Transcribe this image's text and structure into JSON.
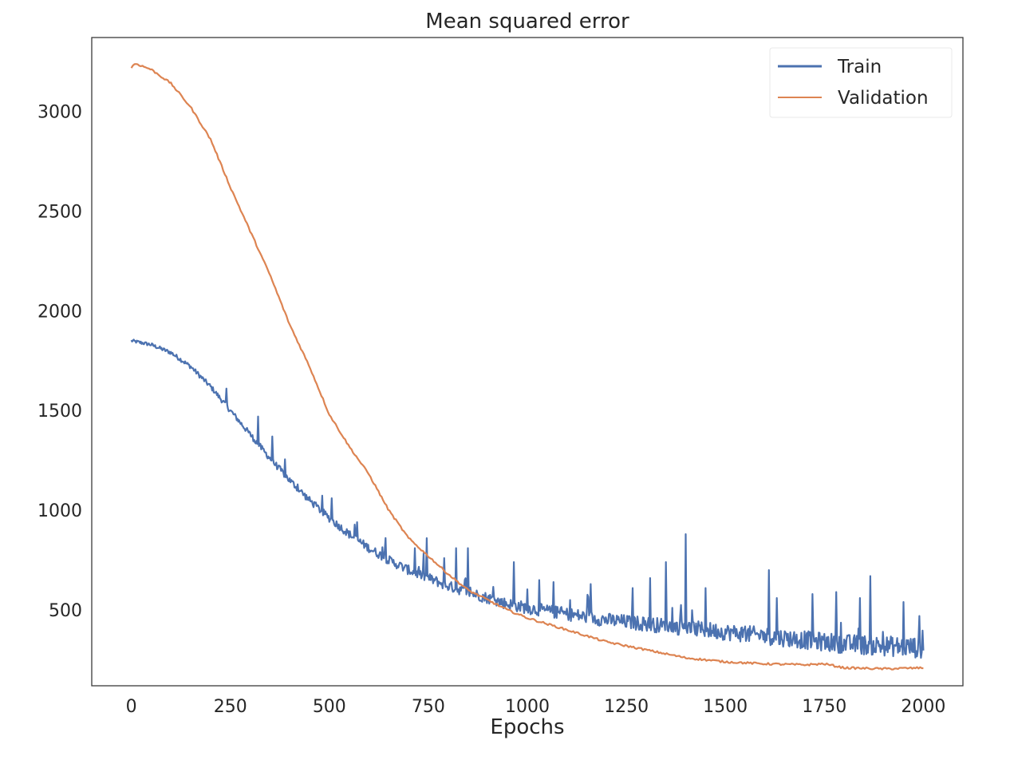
{
  "chart_data": {
    "type": "line",
    "title": "Mean squared error",
    "xlabel": "Epochs",
    "ylabel": "",
    "xlim": [
      -100,
      2100
    ],
    "ylim": [
      120,
      3370
    ],
    "grid": false,
    "legend_position": "top-right",
    "x_ticks": [
      {
        "value": 0,
        "label": "0"
      },
      {
        "value": 250,
        "label": "250"
      },
      {
        "value": 500,
        "label": "500"
      },
      {
        "value": 750,
        "label": "750"
      },
      {
        "value": 1000,
        "label": "1000"
      },
      {
        "value": 1250,
        "label": "1250"
      },
      {
        "value": 1500,
        "label": "1500"
      },
      {
        "value": 1750,
        "label": "1750"
      },
      {
        "value": 2000,
        "label": "2000"
      }
    ],
    "y_ticks": [
      {
        "value": 500,
        "label": "500"
      },
      {
        "value": 1000,
        "label": "1000"
      },
      {
        "value": 1500,
        "label": "1500"
      },
      {
        "value": 2000,
        "label": "2000"
      },
      {
        "value": 2500,
        "label": "2500"
      },
      {
        "value": 3000,
        "label": "3000"
      }
    ],
    "series": [
      {
        "name": "Train",
        "color": "#4c72b0",
        "x": [
          0,
          50,
          100,
          150,
          200,
          250,
          300,
          350,
          400,
          450,
          500,
          550,
          600,
          650,
          700,
          750,
          800,
          850,
          900,
          950,
          1000,
          1100,
          1200,
          1300,
          1400,
          1500,
          1600,
          1700,
          1800,
          1900,
          2000
        ],
        "y": [
          1850,
          1830,
          1790,
          1720,
          1620,
          1500,
          1380,
          1260,
          1150,
          1050,
          960,
          880,
          810,
          750,
          700,
          660,
          620,
          590,
          560,
          530,
          510,
          480,
          450,
          430,
          410,
          390,
          370,
          350,
          330,
          320,
          310
        ],
        "spikes": [
          {
            "x": 240,
            "y": 1610
          },
          {
            "x": 320,
            "y": 1470
          },
          {
            "x": 355,
            "y": 1370
          },
          {
            "x": 420,
            "y": 1130
          },
          {
            "x": 505,
            "y": 1060
          },
          {
            "x": 570,
            "y": 940
          },
          {
            "x": 640,
            "y": 800
          },
          {
            "x": 715,
            "y": 810
          },
          {
            "x": 745,
            "y": 860
          },
          {
            "x": 790,
            "y": 760
          },
          {
            "x": 820,
            "y": 810
          },
          {
            "x": 850,
            "y": 810
          },
          {
            "x": 965,
            "y": 740
          },
          {
            "x": 1030,
            "y": 650
          },
          {
            "x": 1065,
            "y": 640
          },
          {
            "x": 1160,
            "y": 630
          },
          {
            "x": 1265,
            "y": 610
          },
          {
            "x": 1310,
            "y": 660
          },
          {
            "x": 1350,
            "y": 740
          },
          {
            "x": 1400,
            "y": 880
          },
          {
            "x": 1450,
            "y": 610
          },
          {
            "x": 1610,
            "y": 700
          },
          {
            "x": 1630,
            "y": 560
          },
          {
            "x": 1720,
            "y": 580
          },
          {
            "x": 1780,
            "y": 590
          },
          {
            "x": 1840,
            "y": 560
          },
          {
            "x": 1865,
            "y": 670
          },
          {
            "x": 1950,
            "y": 540
          },
          {
            "x": 1990,
            "y": 470
          }
        ]
      },
      {
        "name": "Validation",
        "color": "#dd8452",
        "x": [
          0,
          10,
          50,
          100,
          150,
          200,
          250,
          300,
          350,
          400,
          450,
          500,
          550,
          600,
          650,
          700,
          750,
          800,
          850,
          900,
          950,
          1000,
          1050,
          1100,
          1150,
          1200,
          1300,
          1400,
          1500,
          1600,
          1700,
          1750,
          1800,
          1900,
          2000
        ],
        "y": [
          3220,
          3240,
          3210,
          3140,
          3020,
          2860,
          2620,
          2400,
          2180,
          1930,
          1720,
          1480,
          1320,
          1180,
          1000,
          860,
          770,
          680,
          600,
          550,
          500,
          460,
          430,
          400,
          370,
          340,
          300,
          260,
          240,
          230,
          225,
          230,
          210,
          205,
          210
        ]
      }
    ]
  }
}
